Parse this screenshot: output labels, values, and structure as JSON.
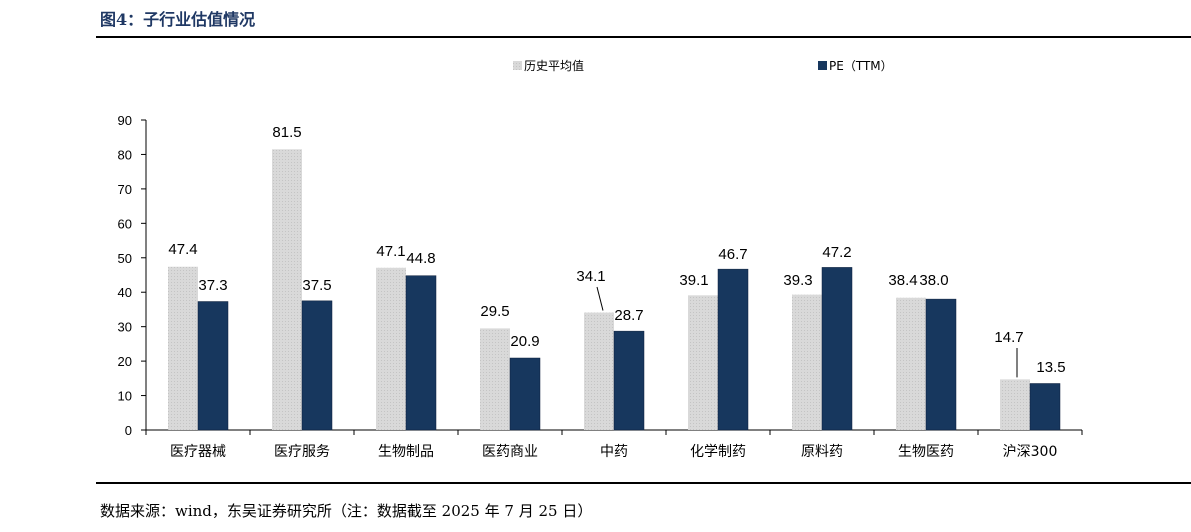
{
  "figure_title": "图4：子行业估值情况",
  "source_note": "数据来源：wind，东吴证券研究所（注：数据截至 2025 年 7 月 25 日）",
  "chart_data": {
    "type": "bar",
    "title": "",
    "xlabel": "",
    "ylabel": "",
    "ylim": [
      0,
      90
    ],
    "yticks": [
      0,
      10,
      20,
      30,
      40,
      50,
      60,
      70,
      80,
      90
    ],
    "grid": false,
    "legend_position": "top",
    "categories": [
      "医疗器械",
      "医疗服务",
      "生物制品",
      "医药商业",
      "中药",
      "化学制药",
      "原料药",
      "生物医药",
      "沪深300"
    ],
    "series": [
      {
        "name": "历史平均值",
        "values": [
          47.4,
          81.5,
          47.1,
          29.5,
          34.1,
          39.1,
          39.3,
          38.4,
          14.7
        ],
        "color": "#d9d9d9"
      },
      {
        "name": "PE（TTM）",
        "values": [
          37.3,
          37.5,
          44.8,
          20.9,
          28.7,
          46.7,
          47.2,
          38.0,
          13.5
        ],
        "color": "#17375e"
      }
    ],
    "data_labels": [
      [
        "47.4",
        "81.5",
        "47.1",
        "29.5",
        "34.1",
        "39.1",
        "39.3",
        "38.4",
        "14.7"
      ],
      [
        "37.3",
        "37.5",
        "44.8",
        "20.9",
        "28.7",
        "46.7",
        "47.2",
        "38.0",
        "13.5"
      ]
    ]
  }
}
